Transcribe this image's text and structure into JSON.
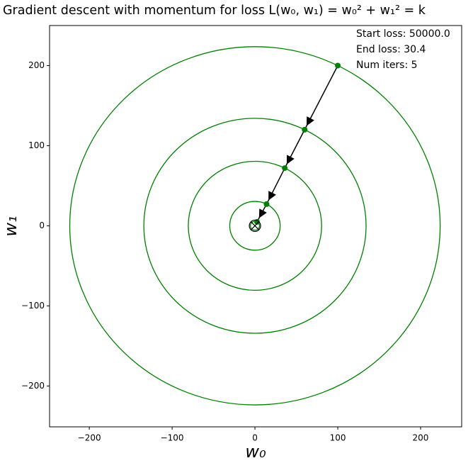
{
  "chart_data": {
    "type": "scatter",
    "title": "Gradient descent with momentum for loss L(w₀, w₁) = w₀² + w₁² = k",
    "x_label": "w₀",
    "y_label": "w₁",
    "annotations": [
      "Start loss: 50000.0",
      "End loss: 30.4",
      "Num iters: 5"
    ],
    "series": [
      {
        "name": "path",
        "color": "#008000",
        "x": [
          100,
          60,
          36,
          14,
          2.5
        ],
        "y": [
          200,
          120,
          72,
          27,
          4.9
        ]
      }
    ],
    "optimum": [
      0,
      0
    ],
    "xlim": [
      -248,
      249.6
    ],
    "ylim": [
      -251,
      250
    ],
    "xticks": [
      {
        "value": -200,
        "label": "−200"
      },
      {
        "value": -100,
        "label": "−100"
      },
      0,
      100,
      200
    ],
    "yticks": [
      {
        "value": -200,
        "label": "−200"
      },
      {
        "value": -100,
        "label": "−100"
      },
      0,
      100,
      200
    ],
    "grid": false
  }
}
